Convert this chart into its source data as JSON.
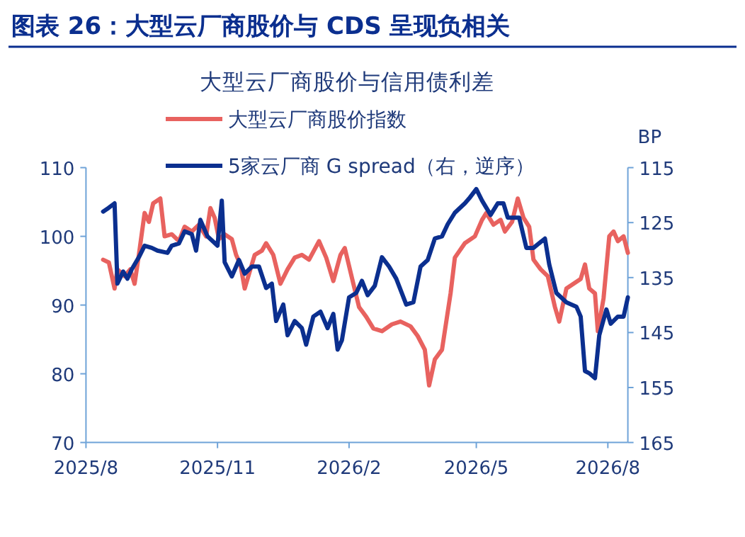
{
  "chart_data": {
    "type": "line",
    "title": "图表 26：大型云厂商股价与 CDS 呈现负相关",
    "subtitle": "大型云厂商股价与信用债利差",
    "y2label": "BP",
    "legend": "top",
    "xlim": [
      "2025-08-01",
      "2026-08-15"
    ],
    "xticks": [
      {
        "value": "2025-08-01",
        "label": "2025/8"
      },
      {
        "value": "2025-11-01",
        "label": "2025/11"
      },
      {
        "value": "2026-02-01",
        "label": "2026/2"
      },
      {
        "value": "2026-05-01",
        "label": "2026/5"
      },
      {
        "value": "2026-08-01",
        "label": "2026/8"
      }
    ],
    "ylim": [
      70,
      110
    ],
    "yticks": [
      70,
      80,
      90,
      100,
      110
    ],
    "y2lim": [
      165,
      115
    ],
    "y2ticks": [
      115,
      125,
      135,
      145,
      155,
      165
    ],
    "series": [
      {
        "name": "大型云厂商股价指数",
        "color": "#e8625f",
        "x": [
          "2025-08-13",
          "2025-08-17",
          "2025-08-21",
          "2025-08-23",
          "2025-08-28",
          "2025-09-01",
          "2025-09-04",
          "2025-09-07",
          "2025-09-11",
          "2025-09-14",
          "2025-09-17",
          "2025-09-22",
          "2025-09-25",
          "2025-09-30",
          "2025-10-05",
          "2025-10-09",
          "2025-10-14",
          "2025-10-19",
          "2025-10-24",
          "2025-10-27",
          "2025-10-30",
          "2025-11-02",
          "2025-11-06",
          "2025-11-11",
          "2025-11-14",
          "2025-11-17",
          "2025-11-20",
          "2025-11-24",
          "2025-11-27",
          "2025-12-02",
          "2025-12-05",
          "2025-12-10",
          "2025-12-15",
          "2025-12-20",
          "2025-12-25",
          "2025-12-30",
          "2026-01-04",
          "2026-01-11",
          "2026-01-16",
          "2026-01-21",
          "2026-01-26",
          "2026-01-29",
          "2026-02-04",
          "2026-02-08",
          "2026-02-13",
          "2026-02-18",
          "2026-02-24",
          "2026-03-03",
          "2026-03-09",
          "2026-03-16",
          "2026-03-21",
          "2026-03-26",
          "2026-03-29",
          "2026-04-02",
          "2026-04-07",
          "2026-04-10",
          "2026-04-13",
          "2026-04-16",
          "2026-04-23",
          "2026-04-30",
          "2026-05-05",
          "2026-05-08",
          "2026-05-13",
          "2026-05-18",
          "2026-05-21",
          "2026-05-26",
          "2026-05-30",
          "2026-06-03",
          "2026-06-07",
          "2026-06-10",
          "2026-06-15",
          "2026-06-20",
          "2026-06-25",
          "2026-06-28",
          "2026-07-03",
          "2026-07-08",
          "2026-07-13",
          "2026-07-16",
          "2026-07-19",
          "2026-07-23",
          "2026-07-25",
          "2026-07-29",
          "2026-08-02",
          "2026-08-05",
          "2026-08-08",
          "2026-08-12",
          "2026-08-15"
        ],
        "values": [
          96.6,
          96.2,
          92.4,
          95.2,
          94.2,
          95.2,
          93.1,
          97.3,
          103.4,
          102.1,
          104.8,
          105.5,
          100,
          100.3,
          99.3,
          101.4,
          100.7,
          101.7,
          100,
          104.1,
          102.7,
          99.6,
          100.3,
          99.6,
          97.3,
          95.9,
          92.4,
          95.2,
          97.3,
          97.9,
          99,
          97.3,
          93.1,
          95.2,
          96.9,
          97.3,
          96.6,
          99.3,
          96.9,
          93.5,
          97.3,
          98.3,
          93.1,
          89.7,
          88.3,
          86.6,
          86.2,
          87.2,
          87.6,
          86.9,
          85.5,
          83.5,
          78.3,
          82.1,
          83.5,
          87.6,
          91.7,
          96.9,
          99,
          100,
          102.4,
          103.4,
          101.7,
          102.4,
          100.7,
          102.1,
          105.5,
          102.7,
          101.4,
          96.6,
          95.2,
          94.2,
          89.7,
          87.6,
          92.4,
          93.1,
          93.8,
          95.9,
          92.4,
          91.7,
          86.2,
          91,
          100,
          100.7,
          99.3,
          100,
          97.6
        ]
      },
      {
        "name": "5家云厂商 G spread（右，逆序）",
        "color": "#0b2f8f",
        "axis": "y2",
        "x": [
          "2025-08-13",
          "2025-08-17",
          "2025-08-21",
          "2025-08-23",
          "2025-08-27",
          "2025-08-30",
          "2025-09-02",
          "2025-09-07",
          "2025-09-11",
          "2025-09-16",
          "2025-09-20",
          "2025-09-27",
          "2025-09-30",
          "2025-10-05",
          "2025-10-09",
          "2025-10-14",
          "2025-10-17",
          "2025-10-20",
          "2025-10-25",
          "2025-11-01",
          "2025-11-04",
          "2025-11-06",
          "2025-11-11",
          "2025-11-16",
          "2025-11-20",
          "2025-11-25",
          "2025-11-30",
          "2025-12-05",
          "2025-12-09",
          "2025-12-12",
          "2025-12-17",
          "2025-12-20",
          "2025-12-25",
          "2025-12-30",
          "2026-01-02",
          "2026-01-07",
          "2026-01-12",
          "2026-01-17",
          "2026-01-21",
          "2026-01-24",
          "2026-01-27",
          "2026-02-01",
          "2026-02-06",
          "2026-02-10",
          "2026-02-14",
          "2026-02-19",
          "2026-02-24",
          "2026-03-01",
          "2026-03-06",
          "2026-03-13",
          "2026-03-18",
          "2026-03-23",
          "2026-03-28",
          "2026-04-02",
          "2026-04-07",
          "2026-04-11",
          "2026-04-16",
          "2026-04-23",
          "2026-04-26",
          "2026-05-01",
          "2026-05-05",
          "2026-05-11",
          "2026-05-16",
          "2026-05-20",
          "2026-05-23",
          "2026-05-31",
          "2026-06-05",
          "2026-06-10",
          "2026-06-18",
          "2026-06-21",
          "2026-06-26",
          "2026-07-03",
          "2026-07-10",
          "2026-07-13",
          "2026-07-16",
          "2026-07-19",
          "2026-07-23",
          "2026-07-26",
          "2026-07-31",
          "2026-08-03",
          "2026-08-08",
          "2026-08-12",
          "2026-08-15"
        ],
        "values": [
          123,
          122.3,
          121.5,
          136.1,
          133.9,
          135.2,
          133.5,
          131.3,
          129.2,
          129.6,
          130.1,
          130.5,
          129.2,
          128.8,
          126.6,
          127.1,
          130.1,
          124.5,
          127.5,
          129.2,
          121,
          132.2,
          134.8,
          131.8,
          134.3,
          133,
          133,
          136.9,
          136.1,
          142.9,
          139.9,
          145.5,
          142.9,
          144.2,
          147.2,
          142.1,
          141.2,
          144.2,
          141.6,
          148.1,
          146.4,
          138.6,
          137.8,
          135.6,
          138.2,
          136.5,
          131.3,
          133,
          135.2,
          139.9,
          139.5,
          133,
          131.8,
          127.9,
          127.5,
          125.3,
          123.2,
          121.5,
          120.6,
          118.9,
          121,
          123.6,
          121.5,
          121.5,
          124.1,
          124.1,
          129.6,
          129.6,
          127.9,
          132.6,
          137.8,
          139.5,
          140.3,
          142.1,
          152,
          152.4,
          153.3,
          145.5,
          140.8,
          143.4,
          142.1,
          142.1,
          138.6
        ]
      }
    ]
  }
}
